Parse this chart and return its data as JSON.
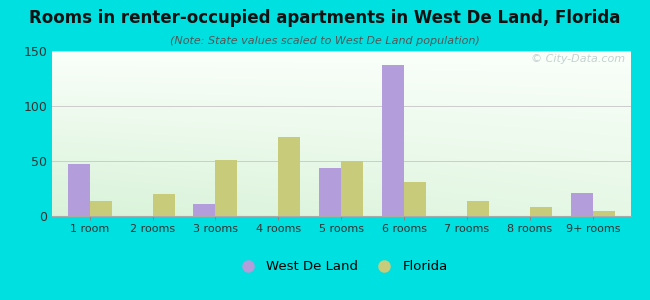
{
  "title": "Rooms in renter-occupied apartments in West De Land, Florida",
  "subtitle": "(Note: State values scaled to West De Land population)",
  "categories": [
    "1 room",
    "2 rooms",
    "3 rooms",
    "4 rooms",
    "5 rooms",
    "6 rooms",
    "7 rooms",
    "8 rooms",
    "9+ rooms"
  ],
  "west_de_land": [
    47,
    0,
    11,
    0,
    44,
    137,
    0,
    0,
    21
  ],
  "florida": [
    14,
    20,
    51,
    72,
    50,
    31,
    14,
    8,
    5
  ],
  "west_color": "#b39ddb",
  "florida_color": "#c8cc7a",
  "bg_outer": "#00e0e0",
  "ylim": [
    0,
    150
  ],
  "yticks": [
    0,
    50,
    100,
    150
  ],
  "bar_width": 0.35,
  "legend_west": "West De Land",
  "legend_florida": "Florida",
  "watermark": "© City-Data.com",
  "title_fontsize": 12,
  "subtitle_fontsize": 8,
  "tick_fontsize": 8,
  "ytick_fontsize": 9
}
